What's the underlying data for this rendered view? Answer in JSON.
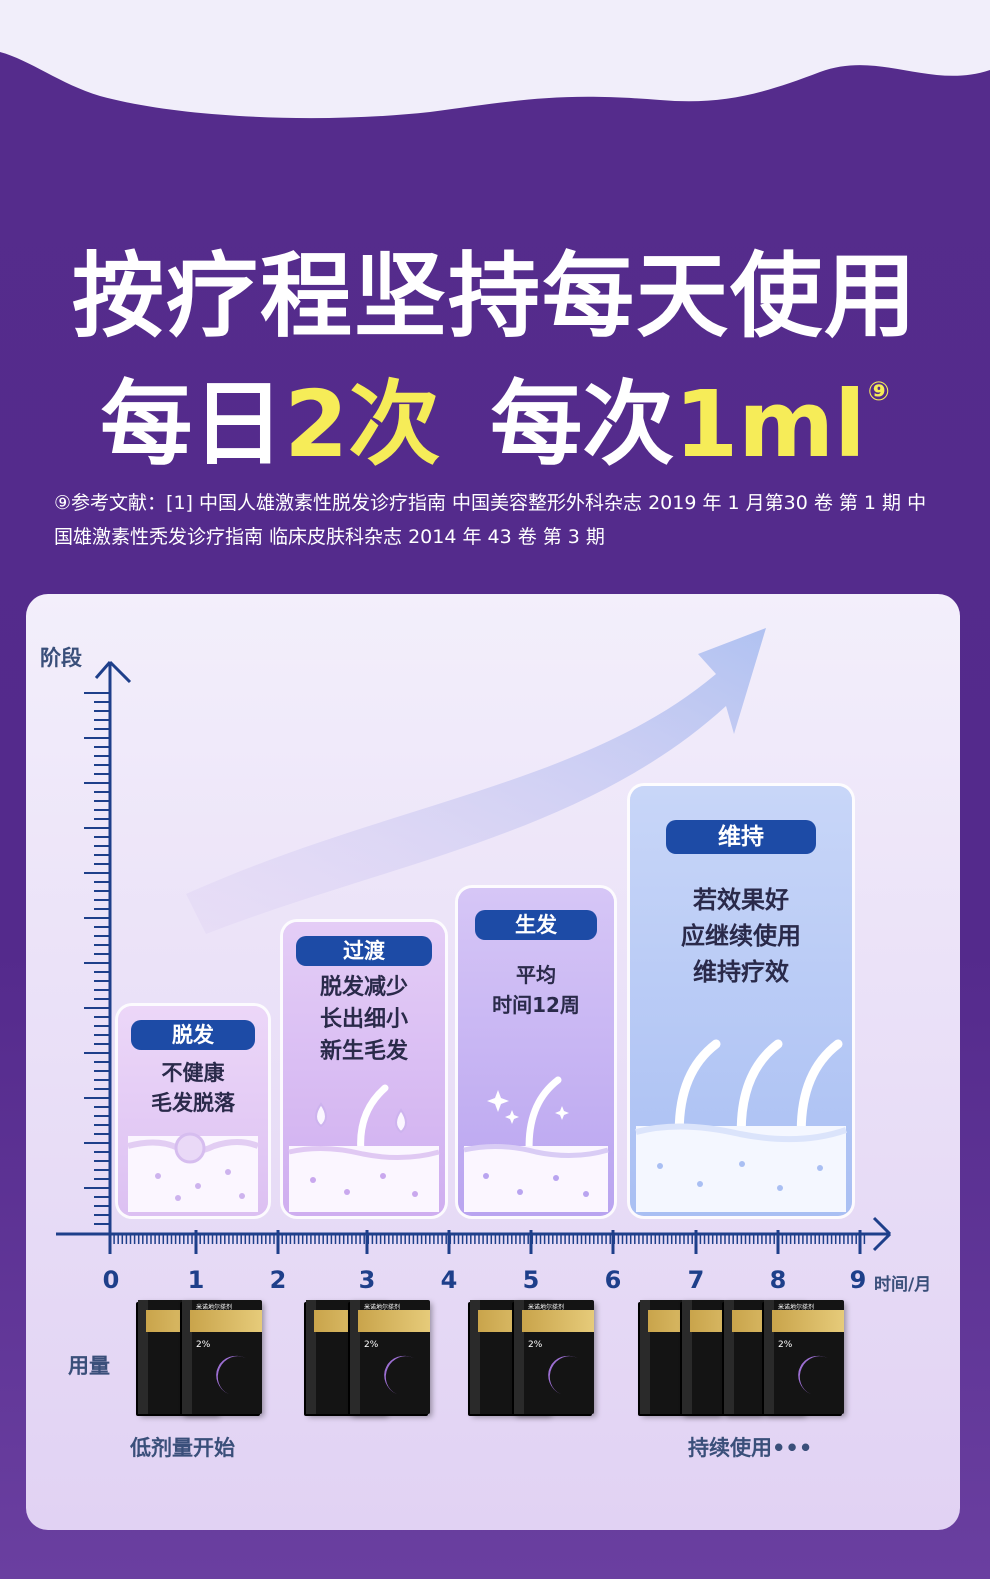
{
  "title": {
    "line1": "按疗程坚持每天使用",
    "line2_a": "每日",
    "line2_b": "2次",
    "line2_c": "每次",
    "line2_d": "1ml",
    "line2_mark": "⑨"
  },
  "references": "⑨参考文献：[1] 中国人雄激素性脱发诊疗指南 中国美容整形外科杂志 2019 年 1 月第30 卷 第 1 期 中国雄激素性秃发诊疗指南 临床皮肤科杂志 2014 年 43 卷 第 3 期",
  "chart": {
    "y_label": "阶段",
    "x_unit": "时间/月",
    "x_ticks": [
      "0",
      "1",
      "2",
      "3",
      "4",
      "5",
      "6",
      "7",
      "8",
      "9"
    ]
  },
  "stages": [
    {
      "tag": "脱发",
      "text_lines": [
        "不健康",
        "毛发脱落"
      ]
    },
    {
      "tag": "过渡",
      "text_lines": [
        "脱发减少",
        "长出细小",
        "新生毛发"
      ]
    },
    {
      "tag": "生发",
      "text_lines": [
        "平均",
        "时间12周"
      ]
    },
    {
      "tag": "维持",
      "text_lines": [
        "若效果好",
        "应继续使用",
        "维持疗效"
      ]
    }
  ],
  "dosage": {
    "label": "用量",
    "caption_start": "低剂量开始",
    "caption_continue": "持续使用•••",
    "product_name": "米诺地尔搽剂",
    "product_pct": "2%"
  },
  "colors": {
    "purple": "#552c8c",
    "yellow": "#f6ec58",
    "tag_blue": "#1d4ba6"
  }
}
